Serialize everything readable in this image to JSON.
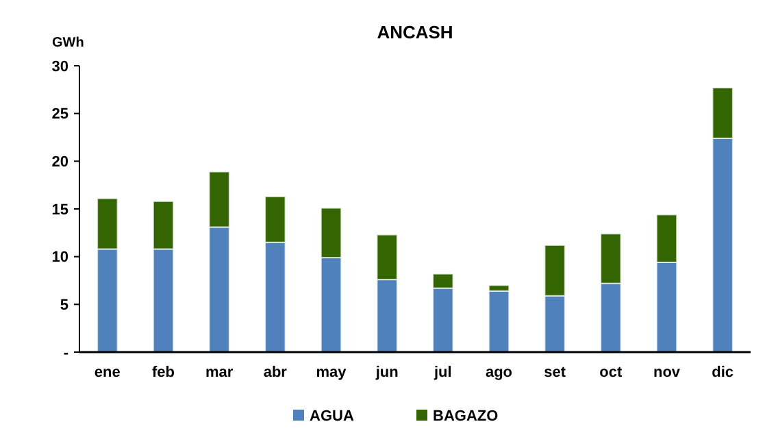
{
  "chart_data": {
    "type": "bar",
    "title": "ANCASH",
    "ylabel": "GWh",
    "stacked": true,
    "legend": "bottom",
    "grid": false,
    "categories": [
      "ene",
      "feb",
      "mar",
      "abr",
      "may",
      "jun",
      "jul",
      "ago",
      "set",
      "oct",
      "nov",
      "dic"
    ],
    "series": [
      {
        "name": "AGUA",
        "color": "#4f81bd",
        "values": [
          10.8,
          10.8,
          13.1,
          11.5,
          9.9,
          7.6,
          6.7,
          6.4,
          5.9,
          7.2,
          9.4,
          22.4
        ]
      },
      {
        "name": "BAGAZO",
        "color": "#336600",
        "values": [
          5.3,
          5.0,
          5.8,
          4.8,
          5.2,
          4.7,
          1.5,
          0.6,
          5.3,
          5.2,
          5.0,
          5.3
        ]
      }
    ],
    "ylim": [
      0,
      30
    ],
    "yticks": [
      {
        "value": 0,
        "label": "-"
      },
      5,
      10,
      15,
      20,
      25,
      30
    ]
  }
}
